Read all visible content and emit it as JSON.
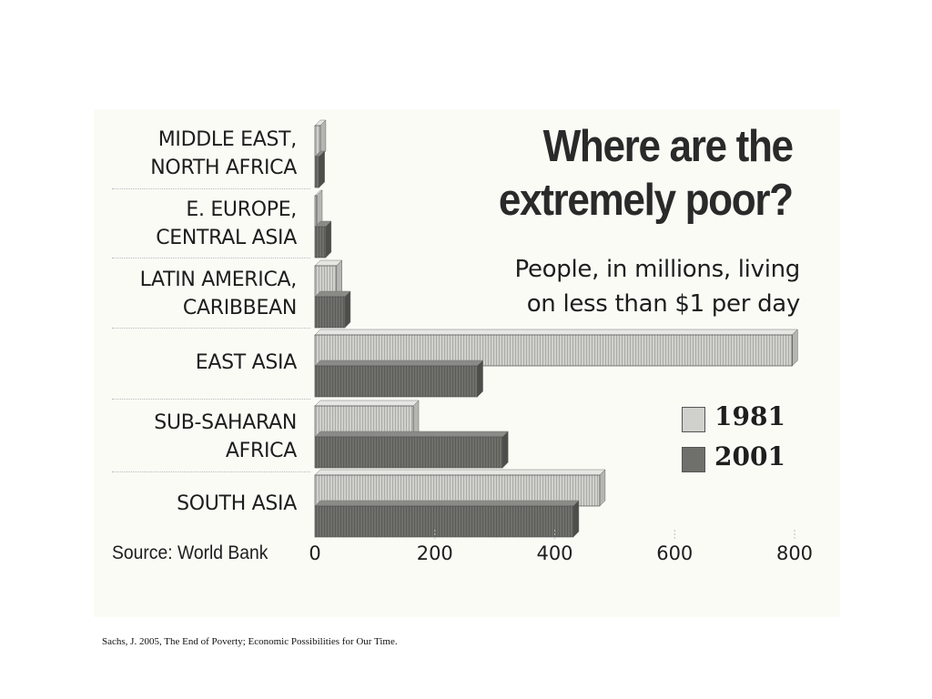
{
  "chart_data": {
    "type": "bar",
    "orientation": "horizontal",
    "title": "Where are the\nextremely poor?",
    "subtitle": "People, in millions, living\non less than $1 per day",
    "categories": [
      "MIDDLE EAST,\nNORTH AFRICA",
      "E. EUROPE,\nCENTRAL ASIA",
      "LATIN AMERICA,\nCARIBBEAN",
      "EAST ASIA",
      "SUB-SAHARAN\nAFRICA",
      "SOUTH ASIA"
    ],
    "series": [
      {
        "name": "1981",
        "color": "#d0d0cc",
        "values": [
          9,
          3,
          36,
          796,
          164,
          475
        ]
      },
      {
        "name": "2001",
        "color": "#6f6f6b",
        "values": [
          7,
          18,
          50,
          271,
          313,
          431
        ]
      }
    ],
    "xticks": [
      "0",
      "200",
      "400",
      "600",
      "800"
    ],
    "xlim": [
      0,
      800
    ],
    "legend_position": "right",
    "source": "Source: World Bank"
  },
  "citation": "Sachs, J. 2005, The End of Poverty; Economic Possibilities for Our Time."
}
